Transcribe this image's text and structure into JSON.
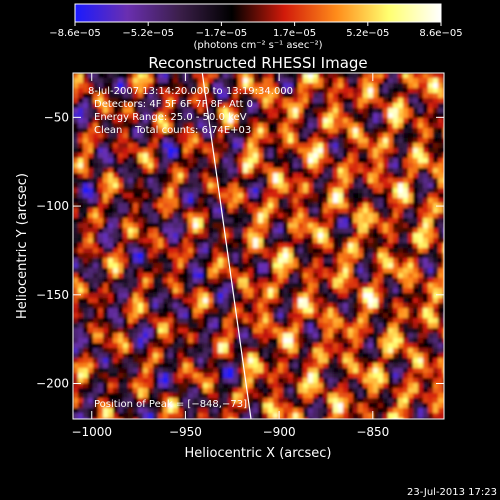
{
  "chart_data": {
    "type": "heatmap",
    "title": "Reconstructed RHESSI Image",
    "xlabel": "Heliocentric X (arcsec)",
    "ylabel": "Heliocentric Y (arcsec)",
    "xlim": [
      -1010,
      -812
    ],
    "ylim": [
      -220,
      -25
    ],
    "x_ticks": [
      {
        "value": -1000,
        "label": "−1000"
      },
      {
        "value": -950,
        "label": "−950"
      },
      {
        "value": -900,
        "label": "−900"
      },
      {
        "value": -850,
        "label": "−850"
      }
    ],
    "y_ticks": [
      {
        "value": -50,
        "label": "−50"
      },
      {
        "value": -100,
        "label": "−100"
      },
      {
        "value": -150,
        "label": "−150"
      },
      {
        "value": -200,
        "label": "−200"
      }
    ],
    "colorbar": {
      "range": [
        -8.6e-05,
        8.6e-05
      ],
      "tick_labels": [
        "−8.6e−05",
        "−5.2e−05",
        "−1.7e−05",
        "1.7e−05",
        "5.2e−05",
        "8.6e−05"
      ],
      "unit_label": "(photons cm⁻² s⁻¹ asec⁻²)",
      "colors": [
        "#1a1aff",
        "#6a2fb0",
        "#3b1f4a",
        "#000000",
        "#d11a0a",
        "#ff8c1a",
        "#ffff70",
        "#ffffff"
      ]
    },
    "annotations": {
      "time_range": "8‑Jul‑2007 13:14:20.000 to 13:19:34.000",
      "detectors": "Detectors: 4F 5F 6F 7F 8F, Att 0",
      "energy_range": "Energy Range: 25.0 ‑ 50.0 keV",
      "clean": "Clean    Total counts: 6.74E+03",
      "peak": "Position of Peak = [−848,−73]"
    },
    "limb_line": [
      [
        -941,
        -25
      ],
      [
        -915,
        -220
      ]
    ]
  },
  "footer": {
    "timestamp": "23-Jul-2013 17:23"
  }
}
